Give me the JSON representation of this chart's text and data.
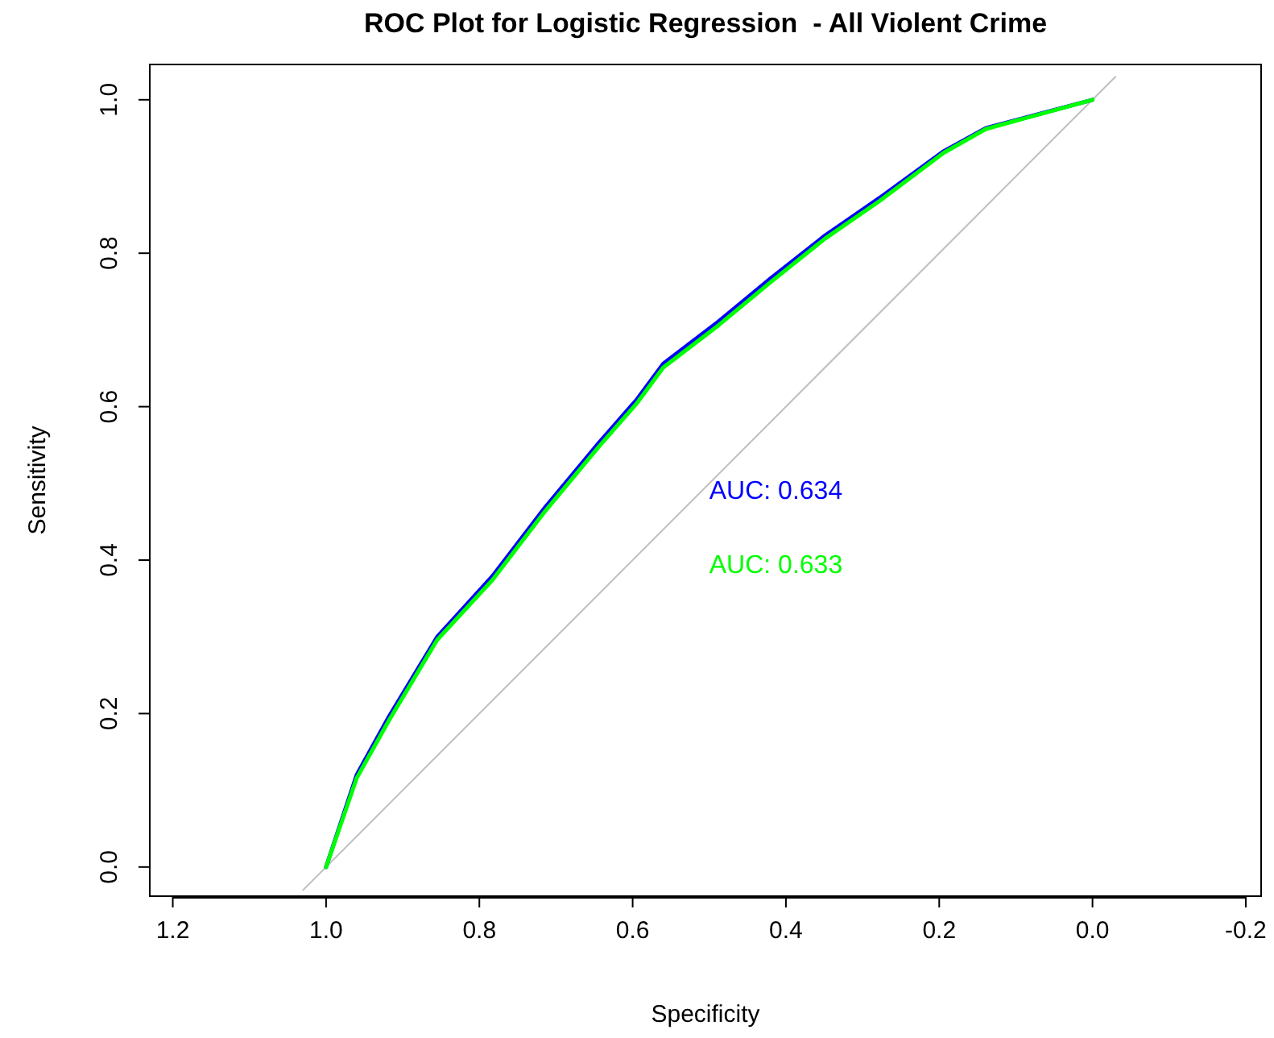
{
  "chart_data": {
    "type": "line",
    "title": "ROC Plot for Logistic Regression  - All Violent Crime",
    "xlabel": "Specificity",
    "ylabel": "Sensitivity",
    "xlim": [
      1.23,
      -0.22
    ],
    "ylim": [
      -0.038,
      1.046
    ],
    "xticks": [
      1.2,
      {
        "value": 1,
        "label": "1.0"
      },
      0.8,
      0.6,
      0.4,
      0.2,
      {
        "value": 0,
        "label": "0.0"
      },
      -0.2
    ],
    "yticks": [
      {
        "value": 0,
        "label": "0.0"
      },
      0.2,
      0.4,
      0.6,
      0.8,
      {
        "value": 1,
        "label": "1.0"
      }
    ],
    "annotations": [
      "AUC: 0.634",
      "AUC: 0.633"
    ],
    "series": [
      {
        "color": "#bebebe",
        "x": [
          1.03,
          -0.03
        ],
        "values": [
          -0.03,
          1.03
        ]
      },
      {
        "color": "#0000ff",
        "x": [
          1.0,
          0.96,
          0.918,
          0.855,
          0.783,
          0.714,
          0.644,
          0.594,
          0.56,
          0.488,
          0.419,
          0.349,
          0.278,
          0.194,
          0.139,
          0.0
        ],
        "values": [
          0.0,
          0.12,
          0.196,
          0.3,
          0.379,
          0.469,
          0.553,
          0.61,
          0.656,
          0.711,
          0.768,
          0.823,
          0.872,
          0.933,
          0.963,
          1.0
        ]
      },
      {
        "color": "#00ff00",
        "x": [
          1.0,
          0.96,
          0.918,
          0.855,
          0.783,
          0.714,
          0.644,
          0.594,
          0.56,
          0.488,
          0.419,
          0.349,
          0.278,
          0.194,
          0.139,
          0.0
        ],
        "values": [
          0.0,
          0.116,
          0.191,
          0.296,
          0.374,
          0.464,
          0.548,
          0.605,
          0.651,
          0.706,
          0.763,
          0.819,
          0.868,
          0.931,
          0.962,
          1.0
        ]
      }
    ]
  }
}
